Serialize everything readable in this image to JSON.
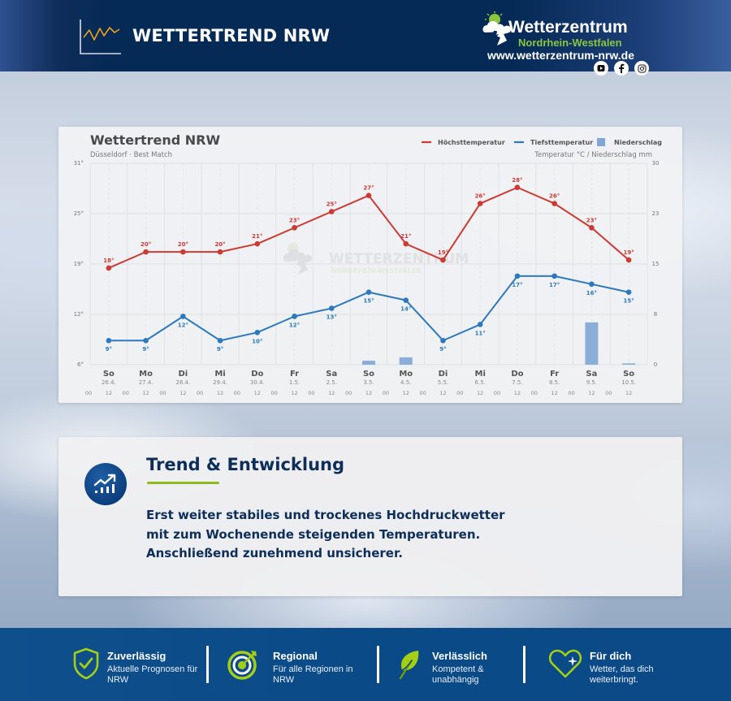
{
  "header": {
    "title": "WETTERTREND NRW",
    "brand_name": "Wetterzentrum",
    "brand_region": "Nordrhein-Westfalen",
    "brand_url": "www.wetterzentrum-nrw.de",
    "social": [
      "youtube-icon",
      "facebook-icon",
      "instagram-icon"
    ]
  },
  "chart_card": {
    "title": "Wettertrend NRW",
    "subtitle": "Düsseldorf · Best Match",
    "units_label": "Temperatur °C / Niederschlag mm",
    "legend": [
      {
        "label": "Höchsttemperatur",
        "color": "#cc3a33",
        "kind": "line"
      },
      {
        "label": "Tiefsttemperatur",
        "color": "#2d79bd",
        "kind": "line"
      },
      {
        "label": "Niederschlag",
        "color": "#7fa6d6",
        "kind": "bar"
      }
    ],
    "watermark": {
      "name": "WETTERZENTRUM",
      "sub": "NORDRHEIN-WESTFALEN"
    }
  },
  "chart_data": {
    "type": "line",
    "title": "Wettertrend NRW",
    "subtitle": "Düsseldorf · Best Match",
    "xlabel": "",
    "ylabel": "Temperatur °C",
    "y2label": "Niederschlag mm",
    "ylim": [
      6,
      31
    ],
    "y2lim": [
      0,
      30
    ],
    "yticks": [
      "31°",
      "25°",
      "19°",
      "12°",
      "6°"
    ],
    "y2ticks": [
      "30",
      "23",
      "15",
      "8",
      "0"
    ],
    "grid": true,
    "legend_position": "top-right",
    "categories": [
      "So",
      "Mo",
      "Di",
      "Mi",
      "Do",
      "Fr",
      "Sa",
      "So",
      "Mo",
      "Di",
      "Mi",
      "Do",
      "Fr",
      "Sa",
      "So"
    ],
    "dates": [
      "26.4.",
      "27.4.",
      "28.4.",
      "29.4.",
      "30.4.",
      "1.5.",
      "2.5.",
      "3.5.",
      "4.5.",
      "5.5.",
      "6.5.",
      "7.5.",
      "8.5.",
      "9.5.",
      "10.5."
    ],
    "hour_ticks": [
      "00",
      "12"
    ],
    "series": [
      {
        "name": "Höchsttemperatur",
        "type": "line",
        "color": "#cc3a33",
        "axis": "left",
        "values": [
          18,
          20,
          20,
          20,
          21,
          23,
          25,
          27,
          21,
          19,
          26,
          28,
          26,
          23,
          19
        ]
      },
      {
        "name": "Tiefsttemperatur",
        "type": "line",
        "color": "#2d79bd",
        "axis": "left",
        "values": [
          9,
          9,
          12,
          9,
          10,
          12,
          13,
          15,
          14,
          9,
          11,
          17,
          17,
          16,
          15
        ]
      },
      {
        "name": "Niederschlag",
        "type": "bar",
        "color": "#7fa6d6",
        "axis": "right",
        "values": [
          0,
          0,
          0,
          0,
          0,
          0,
          0,
          0.6,
          1.1,
          0,
          0,
          0,
          0,
          6.3,
          0.2
        ]
      }
    ]
  },
  "trend": {
    "title": "Trend & Entwicklung",
    "body_lines": [
      "Erst weiter stabiles und trockenes Hochdruckwetter",
      "mit zum Wochenende steigenden Temperaturen.",
      "Anschließend zunehmend unsicherer."
    ]
  },
  "footer": {
    "features": [
      {
        "title": "Zuverlässig",
        "desc": "Aktuelle Prognosen für NRW",
        "icon": "shield-check-icon"
      },
      {
        "title": "Regional",
        "desc": "Für alle Regionen in NRW",
        "icon": "target-icon"
      },
      {
        "title": "Verlässlich",
        "desc": "Kompetent & unabhängig",
        "icon": "leaf-icon"
      },
      {
        "title": "Für dich",
        "desc": "Wetter, das dich weiterbringt.",
        "icon": "heart-sparkle-icon"
      }
    ]
  }
}
